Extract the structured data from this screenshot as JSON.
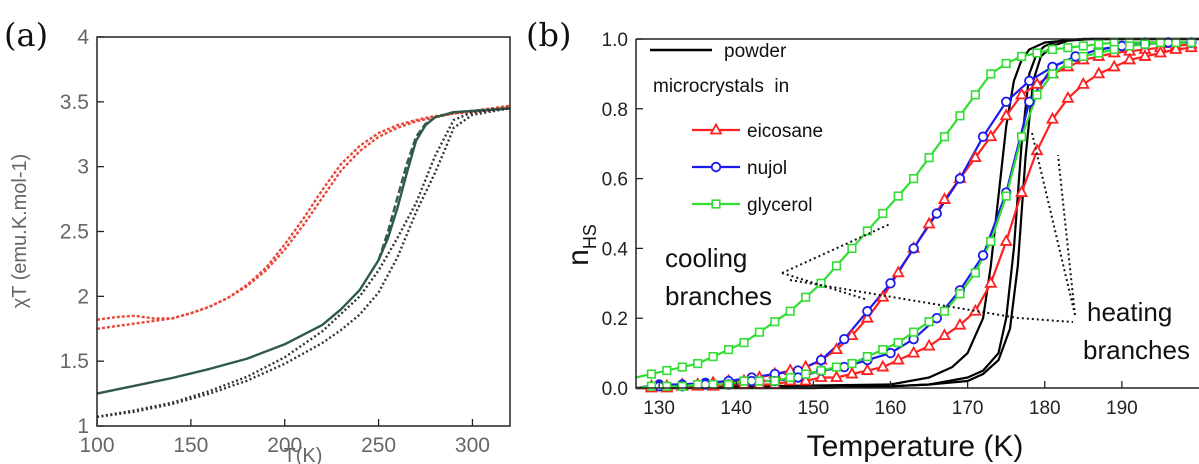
{
  "chart_data": [
    {
      "panel_label": "(a)",
      "type": "line",
      "xlabel": "T(K)",
      "ylabel": "χT (emu.K.mol-1)",
      "xlim": [
        100,
        320
      ],
      "ylim": [
        1,
        4
      ],
      "xticks": [
        100,
        150,
        200,
        250,
        300
      ],
      "yticks": [
        1,
        1.5,
        2,
        2.5,
        3,
        3.5,
        4
      ],
      "ytick_labels": [
        "1",
        "1.5",
        "2",
        "2.5",
        "3",
        "3.5",
        "4"
      ],
      "grid": false,
      "series": [
        {
          "color": "#e8493a",
          "dash": "3,2",
          "x": [
            100,
            110,
            120,
            130,
            140,
            150,
            160,
            170,
            180,
            190,
            200,
            210,
            220,
            230,
            240,
            250,
            260,
            270,
            280,
            290,
            300,
            310,
            320
          ],
          "y": [
            1.82,
            1.84,
            1.85,
            1.83,
            1.83,
            1.87,
            1.92,
            1.99,
            2.09,
            2.22,
            2.4,
            2.6,
            2.82,
            3.02,
            3.16,
            3.26,
            3.32,
            3.36,
            3.39,
            3.41,
            3.42,
            3.44,
            3.46
          ]
        },
        {
          "color": "#e8493a",
          "dash": "3,2",
          "x": [
            100,
            110,
            120,
            130,
            140,
            150,
            160,
            170,
            180,
            190,
            200,
            210,
            220,
            230,
            240,
            250,
            260,
            270,
            280,
            290,
            300,
            310,
            320
          ],
          "y": [
            1.75,
            1.77,
            1.79,
            1.81,
            1.83,
            1.87,
            1.92,
            1.99,
            2.08,
            2.2,
            2.36,
            2.55,
            2.76,
            2.97,
            3.12,
            3.23,
            3.3,
            3.35,
            3.38,
            3.41,
            3.43,
            3.45,
            3.47
          ]
        },
        {
          "color": "#2e5a47",
          "dash": "",
          "x": [
            100,
            120,
            140,
            160,
            180,
            200,
            220,
            230,
            240,
            250,
            255,
            260,
            265,
            270,
            275,
            280,
            290,
            300,
            320
          ],
          "y": [
            1.25,
            1.31,
            1.37,
            1.44,
            1.52,
            1.63,
            1.78,
            1.9,
            2.05,
            2.28,
            2.45,
            2.68,
            2.95,
            3.2,
            3.32,
            3.38,
            3.42,
            3.43,
            3.45
          ]
        },
        {
          "color": "#2e5a47",
          "dash": "7,3",
          "x": [
            250,
            255,
            260,
            265,
            270,
            275,
            280,
            290,
            300,
            320
          ],
          "y": [
            2.28,
            2.5,
            2.76,
            3.02,
            3.23,
            3.33,
            3.38,
            3.42,
            3.43,
            3.45
          ]
        },
        {
          "color": "#333333",
          "dash": "2,2.5",
          "x": [
            100,
            120,
            140,
            160,
            180,
            200,
            220,
            240,
            250,
            260,
            270,
            280,
            290,
            300,
            320
          ],
          "y": [
            1.07,
            1.12,
            1.18,
            1.27,
            1.38,
            1.53,
            1.73,
            2.0,
            2.2,
            2.45,
            2.72,
            3.08,
            3.36,
            3.42,
            3.45
          ]
        },
        {
          "color": "#333333",
          "dash": "2,2.5",
          "x": [
            100,
            120,
            140,
            160,
            180,
            200,
            220,
            230,
            240,
            250,
            260,
            270,
            280,
            285,
            290,
            300,
            320
          ],
          "y": [
            1.07,
            1.11,
            1.17,
            1.25,
            1.35,
            1.48,
            1.64,
            1.74,
            1.86,
            2.03,
            2.3,
            2.65,
            2.95,
            3.12,
            3.3,
            3.4,
            3.45
          ]
        }
      ]
    },
    {
      "panel_label": "(b)",
      "type": "line",
      "xlabel": "Temperature (K)",
      "ylabel": "n",
      "ylabel_sub": "HS",
      "xlim": [
        127,
        200
      ],
      "ylim": [
        0,
        1
      ],
      "xticks": [
        130,
        140,
        150,
        160,
        170,
        180,
        190
      ],
      "yticks": [
        0.0,
        0.2,
        0.4,
        0.6,
        0.8,
        1.0
      ],
      "ytick_labels": [
        "0.0",
        "0.2",
        "0.4",
        "0.6",
        "0.8",
        "1.0"
      ],
      "grid": false,
      "legend": {
        "position": "top-left",
        "header": "microcrystals  in",
        "entries": [
          {
            "label": "powder",
            "color": "#000000",
            "marker": "none"
          },
          {
            "label": "eicosane",
            "color": "#ff2020",
            "marker": "triangle"
          },
          {
            "label": "nujol",
            "color": "#1a1aee",
            "marker": "circle"
          },
          {
            "label": "glycerol",
            "color": "#33dd33",
            "marker": "square"
          }
        ]
      },
      "annotations": [
        {
          "text": [
            "cooling",
            "branches"
          ]
        },
        {
          "text": [
            "heating",
            "branches"
          ]
        }
      ],
      "series": [
        {
          "name": "powder",
          "color": "#000000",
          "marker": "none",
          "x": [
            127,
            140,
            150,
            160,
            165,
            170,
            172,
            174,
            175,
            176,
            177,
            178,
            179,
            180,
            182,
            185,
            200
          ],
          "y": [
            0.0,
            0.0,
            0.0,
            0.005,
            0.01,
            0.03,
            0.05,
            0.1,
            0.2,
            0.4,
            0.7,
            0.9,
            0.96,
            0.98,
            0.995,
            1.0,
            1.0
          ]
        },
        {
          "name": "powder",
          "color": "#000000",
          "marker": "none",
          "x": [
            127,
            140,
            150,
            160,
            165,
            170,
            172,
            174,
            175.5,
            176.5,
            177.5,
            178.5,
            179.5,
            181,
            183,
            186,
            200
          ],
          "y": [
            0.0,
            0.0,
            0.0,
            0.005,
            0.01,
            0.02,
            0.04,
            0.08,
            0.17,
            0.35,
            0.66,
            0.88,
            0.95,
            0.98,
            0.995,
            1.0,
            1.0
          ]
        },
        {
          "name": "powder",
          "color": "#000000",
          "marker": "none",
          "x": [
            127,
            160,
            165,
            168,
            170,
            172,
            173,
            174,
            175,
            176,
            177,
            178,
            180,
            185,
            200
          ],
          "y": [
            0.0,
            0.01,
            0.03,
            0.06,
            0.1,
            0.2,
            0.35,
            0.55,
            0.75,
            0.88,
            0.94,
            0.97,
            0.99,
            1.0,
            1.0
          ]
        },
        {
          "name": "eicosane",
          "color": "#ff2020",
          "marker": "triangle",
          "x": [
            127,
            129,
            131,
            133,
            135,
            137,
            139,
            141,
            143,
            145,
            147,
            149,
            151,
            153,
            155,
            157,
            159,
            161,
            163,
            165,
            167,
            169,
            171,
            173,
            175,
            177,
            179,
            181,
            183,
            185,
            187,
            189,
            191,
            193,
            195,
            197,
            199
          ],
          "y": [
            0.0,
            0.005,
            0.005,
            0.01,
            0.01,
            0.015,
            0.02,
            0.02,
            0.03,
            0.04,
            0.05,
            0.06,
            0.08,
            0.11,
            0.15,
            0.2,
            0.26,
            0.33,
            0.4,
            0.47,
            0.54,
            0.6,
            0.66,
            0.72,
            0.78,
            0.84,
            0.87,
            0.9,
            0.92,
            0.94,
            0.95,
            0.96,
            0.965,
            0.97,
            0.975,
            0.98,
            0.985
          ]
        },
        {
          "name": "eicosane",
          "color": "#ff2020",
          "marker": "triangle",
          "x": [
            127,
            129,
            131,
            133,
            135,
            137,
            139,
            141,
            143,
            145,
            147,
            149,
            151,
            153,
            155,
            157,
            159,
            161,
            163,
            165,
            167,
            169,
            171,
            173,
            175,
            177,
            179,
            181,
            183,
            185,
            187,
            189,
            191,
            193,
            195,
            197,
            199
          ],
          "y": [
            0.0,
            0.0,
            0.0,
            0.005,
            0.005,
            0.005,
            0.01,
            0.01,
            0.01,
            0.01,
            0.02,
            0.02,
            0.03,
            0.03,
            0.04,
            0.05,
            0.06,
            0.08,
            0.1,
            0.12,
            0.15,
            0.18,
            0.22,
            0.3,
            0.42,
            0.56,
            0.68,
            0.77,
            0.83,
            0.87,
            0.9,
            0.92,
            0.94,
            0.95,
            0.96,
            0.97,
            0.975
          ]
        },
        {
          "name": "nujol",
          "color": "#1a1aee",
          "marker": "circle",
          "x": [
            127,
            130,
            133,
            136,
            139,
            142,
            145,
            148,
            151,
            154,
            157,
            160,
            163,
            166,
            169,
            172,
            175,
            178,
            181,
            184,
            187,
            190,
            193,
            196,
            199
          ],
          "y": [
            0.0,
            0.01,
            0.01,
            0.015,
            0.02,
            0.03,
            0.04,
            0.05,
            0.08,
            0.14,
            0.22,
            0.3,
            0.4,
            0.5,
            0.6,
            0.72,
            0.82,
            0.88,
            0.92,
            0.95,
            0.97,
            0.98,
            0.985,
            0.99,
            0.99
          ]
        },
        {
          "name": "nujol",
          "color": "#1a1aee",
          "marker": "circle",
          "x": [
            127,
            130,
            133,
            136,
            139,
            142,
            145,
            148,
            151,
            154,
            157,
            160,
            163,
            166,
            169,
            172,
            175,
            178,
            181,
            184,
            187,
            190,
            193,
            196,
            199
          ],
          "y": [
            0.0,
            0.005,
            0.005,
            0.01,
            0.01,
            0.02,
            0.02,
            0.03,
            0.05,
            0.06,
            0.08,
            0.1,
            0.14,
            0.2,
            0.28,
            0.38,
            0.56,
            0.82,
            0.92,
            0.95,
            0.97,
            0.98,
            0.99,
            0.99,
            0.99
          ]
        },
        {
          "name": "glycerol",
          "color": "#33dd33",
          "marker": "square",
          "x": [
            127,
            129,
            131,
            133,
            135,
            137,
            139,
            141,
            143,
            145,
            147,
            149,
            151,
            153,
            155,
            157,
            159,
            161,
            163,
            165,
            167,
            169,
            171,
            173,
            175,
            177,
            179,
            181,
            183,
            185,
            187,
            189,
            191,
            193,
            195,
            197,
            199
          ],
          "y": [
            0.03,
            0.04,
            0.05,
            0.06,
            0.07,
            0.09,
            0.11,
            0.13,
            0.16,
            0.19,
            0.22,
            0.26,
            0.3,
            0.35,
            0.4,
            0.45,
            0.5,
            0.55,
            0.6,
            0.66,
            0.72,
            0.78,
            0.84,
            0.9,
            0.93,
            0.95,
            0.96,
            0.97,
            0.975,
            0.98,
            0.985,
            0.99,
            0.99,
            0.99,
            0.99,
            0.99,
            0.99
          ]
        },
        {
          "name": "glycerol",
          "color": "#33dd33",
          "marker": "square",
          "x": [
            127,
            129,
            131,
            133,
            135,
            137,
            139,
            141,
            143,
            145,
            147,
            149,
            151,
            153,
            155,
            157,
            159,
            161,
            163,
            165,
            167,
            169,
            171,
            173,
            175,
            177,
            179,
            181,
            183,
            185,
            187,
            189,
            191,
            193,
            195,
            197,
            199
          ],
          "y": [
            0.0,
            0.005,
            0.005,
            0.005,
            0.01,
            0.01,
            0.01,
            0.02,
            0.02,
            0.02,
            0.03,
            0.04,
            0.05,
            0.06,
            0.07,
            0.09,
            0.11,
            0.13,
            0.16,
            0.19,
            0.22,
            0.27,
            0.33,
            0.42,
            0.55,
            0.72,
            0.84,
            0.9,
            0.93,
            0.95,
            0.96,
            0.97,
            0.98,
            0.985,
            0.99,
            0.99,
            0.99
          ]
        }
      ]
    }
  ]
}
